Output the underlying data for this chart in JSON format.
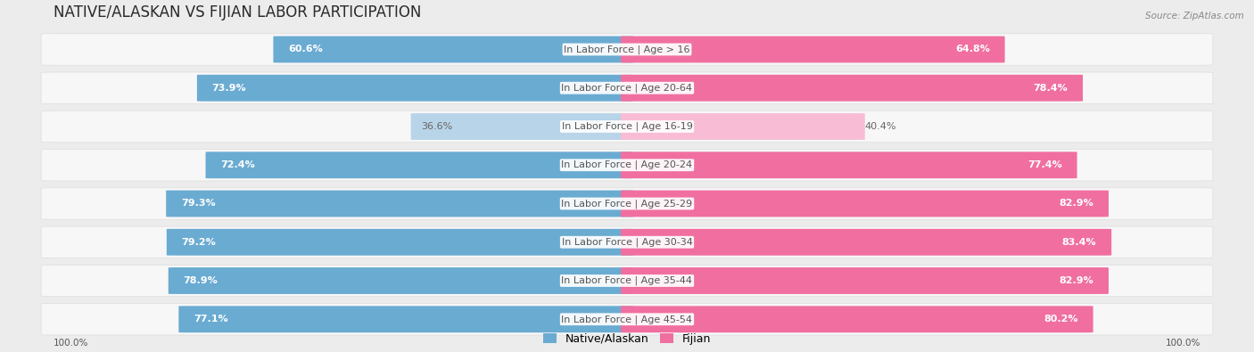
{
  "title": "NATIVE/ALASKAN VS FIJIAN LABOR PARTICIPATION",
  "source": "Source: ZipAtlas.com",
  "categories": [
    "In Labor Force | Age > 16",
    "In Labor Force | Age 20-64",
    "In Labor Force | Age 16-19",
    "In Labor Force | Age 20-24",
    "In Labor Force | Age 25-29",
    "In Labor Force | Age 30-34",
    "In Labor Force | Age 35-44",
    "In Labor Force | Age 45-54"
  ],
  "native_values": [
    60.6,
    73.9,
    36.6,
    72.4,
    79.3,
    79.2,
    78.9,
    77.1
  ],
  "fijian_values": [
    64.8,
    78.4,
    40.4,
    77.4,
    82.9,
    83.4,
    82.9,
    80.2
  ],
  "native_color": "#6aabd2",
  "native_color_light": "#b8d4e8",
  "fijian_color": "#f06fa0",
  "fijian_color_light": "#f8bdd4",
  "background_color": "#ececec",
  "row_bg_color": "#f7f7f7",
  "row_bg_dark": "#e8e8e8",
  "max_value": 100.0,
  "center_label_bg": "#ffffff",
  "center_label_color": "#555555",
  "title_fontsize": 12,
  "label_fontsize": 8,
  "value_fontsize": 8,
  "legend_fontsize": 9
}
